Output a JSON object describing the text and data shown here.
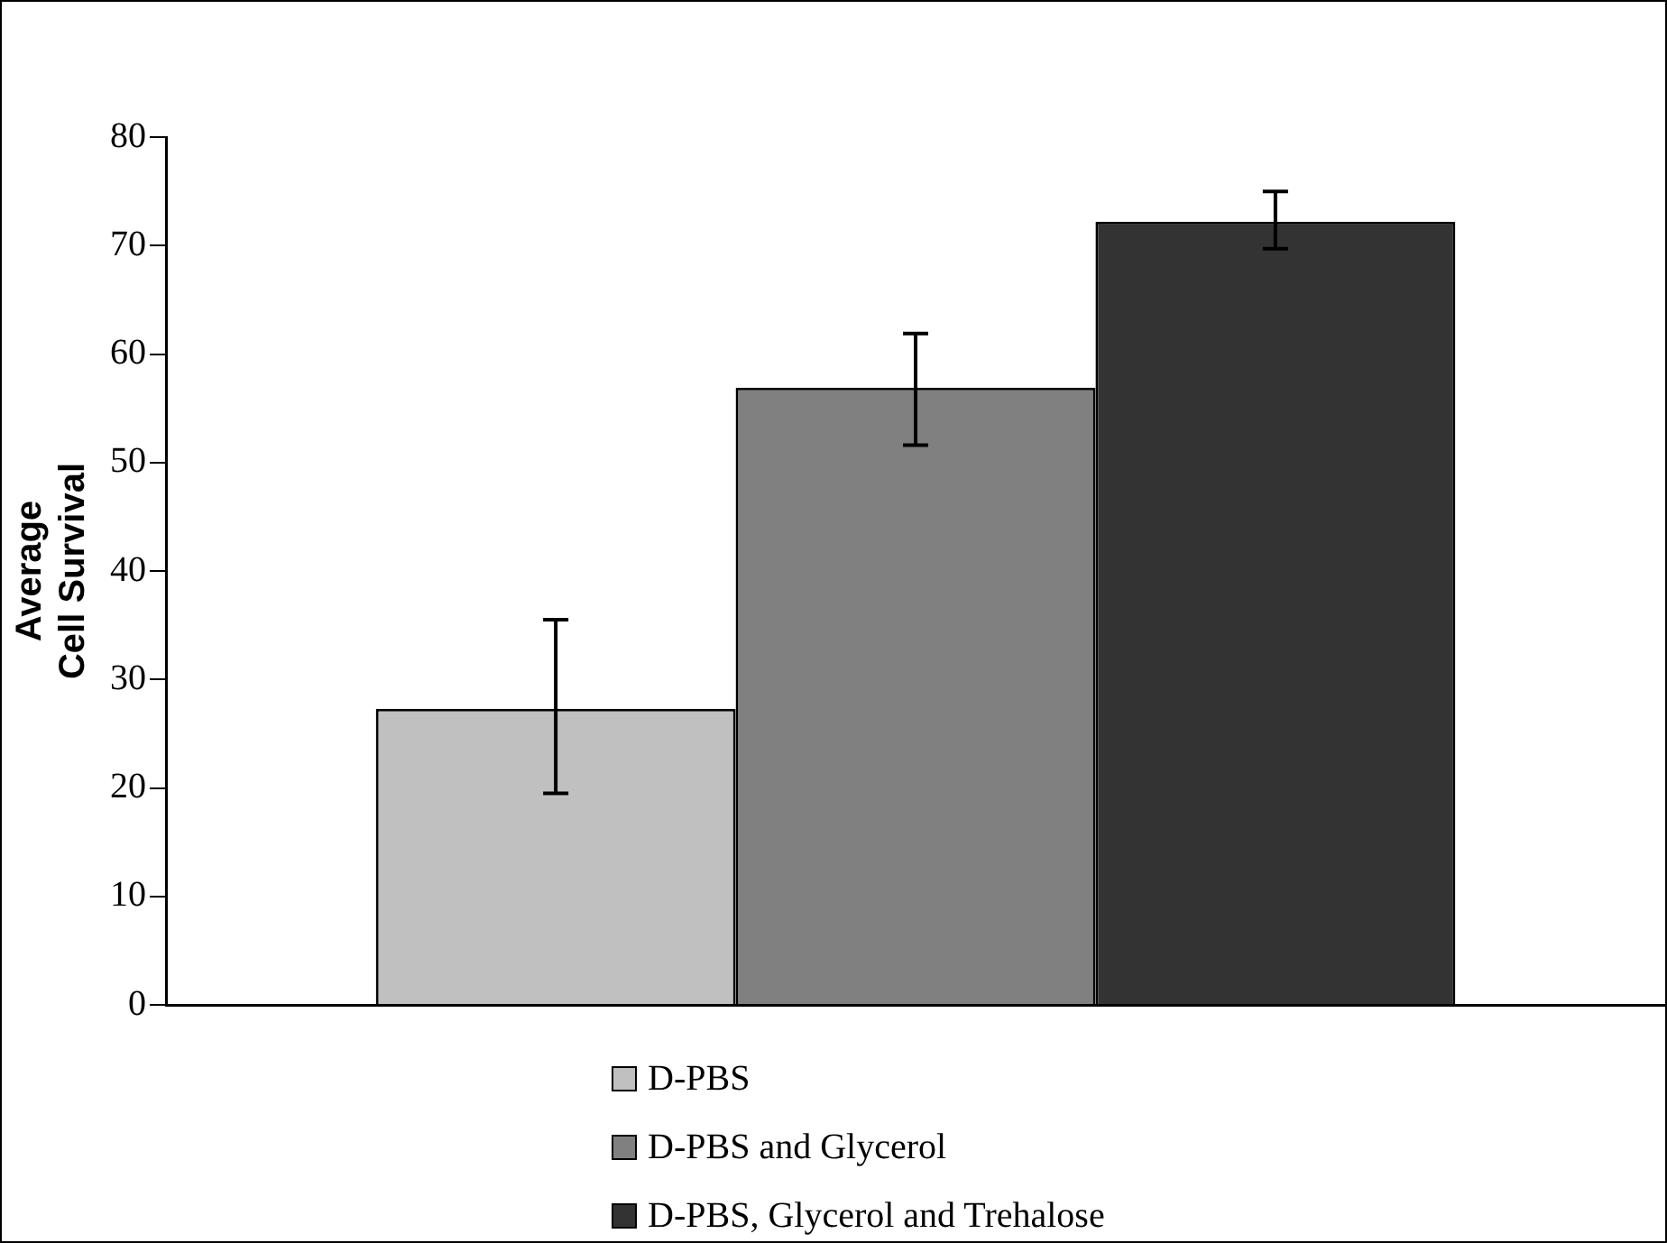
{
  "chart_data": {
    "type": "bar",
    "ylabel": "Average\nCell Survival",
    "categories": [
      null
    ],
    "series": [
      {
        "name": "D-PBS",
        "color": "#c0c0c0",
        "values": [
          27.3
        ],
        "errors": [
          [
            19.5,
            35.5
          ]
        ]
      },
      {
        "name": "D-PBS and Glycerol",
        "color": "#808080",
        "values": [
          56.9
        ],
        "errors": [
          [
            51.6,
            61.9
          ]
        ]
      },
      {
        "name": "D-PBS, Glycerol and Trehalose",
        "color": "#333333",
        "values": [
          72.2
        ],
        "errors": [
          [
            69.7,
            75.0
          ]
        ]
      }
    ],
    "ylim": [
      0,
      80
    ],
    "yticks": [
      0,
      10,
      20,
      30,
      40,
      50,
      60,
      70,
      80
    ],
    "grid": false,
    "legend": "bottom"
  }
}
